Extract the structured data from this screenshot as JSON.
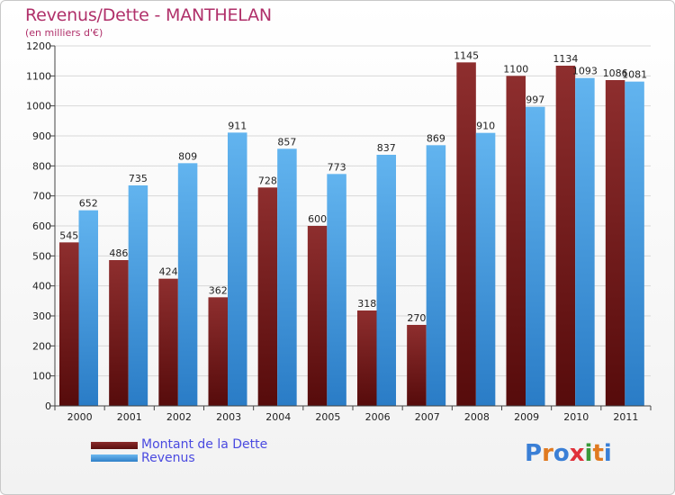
{
  "header": {
    "title": "Revenus/Dette - MANTHELAN",
    "subtitle": "(en milliers d'€)"
  },
  "legend": {
    "dette": "Montant de la Dette",
    "revenus": "Revenus"
  },
  "logo": {
    "text": "Proxiti",
    "letters": [
      "P",
      "r",
      "o",
      "x",
      "i",
      "t",
      "i"
    ],
    "colors": [
      "#3a7fd6",
      "#e07a20",
      "#3a7fd6",
      "#e0303a",
      "#3a9a3a",
      "#e07a20",
      "#3a7fd6"
    ]
  },
  "colors": {
    "dette_top": "#8e2e2e",
    "dette_bottom": "#560b0b",
    "revenus_top": "#62b4ef",
    "revenus_bottom": "#2a7cc6",
    "title": "#b0306a",
    "legend_text": "#4a4ae0"
  },
  "chart_data": {
    "type": "bar",
    "title": "Revenus/Dette - MANTHELAN",
    "subtitle": "(en milliers d'€)",
    "categories": [
      "2000",
      "2001",
      "2002",
      "2003",
      "2004",
      "2005",
      "2006",
      "2007",
      "2008",
      "2009",
      "2010",
      "2011"
    ],
    "series": [
      {
        "name": "Montant de la Dette",
        "values": [
          545,
          486,
          424,
          362,
          728,
          600,
          318,
          270,
          1145,
          1100,
          1134,
          1086
        ]
      },
      {
        "name": "Revenus",
        "values": [
          652,
          735,
          809,
          911,
          857,
          773,
          837,
          869,
          910,
          997,
          1093,
          1081
        ]
      }
    ],
    "value_labels": [
      [
        "545",
        "486",
        "424",
        "362",
        "728",
        "600",
        "318",
        "270",
        "1145",
        "1100",
        "1134",
        "1086"
      ],
      [
        "652",
        "735",
        "809",
        "911",
        "857",
        "773",
        "837",
        "869",
        "910",
        "997",
        "1093",
        "1081"
      ]
    ],
    "ylim": [
      0,
      1200
    ],
    "yticks": [
      0,
      100,
      200,
      300,
      400,
      500,
      600,
      700,
      800,
      900,
      1000,
      1100,
      1200
    ],
    "grid": true,
    "legend_position": "bottom-left"
  }
}
